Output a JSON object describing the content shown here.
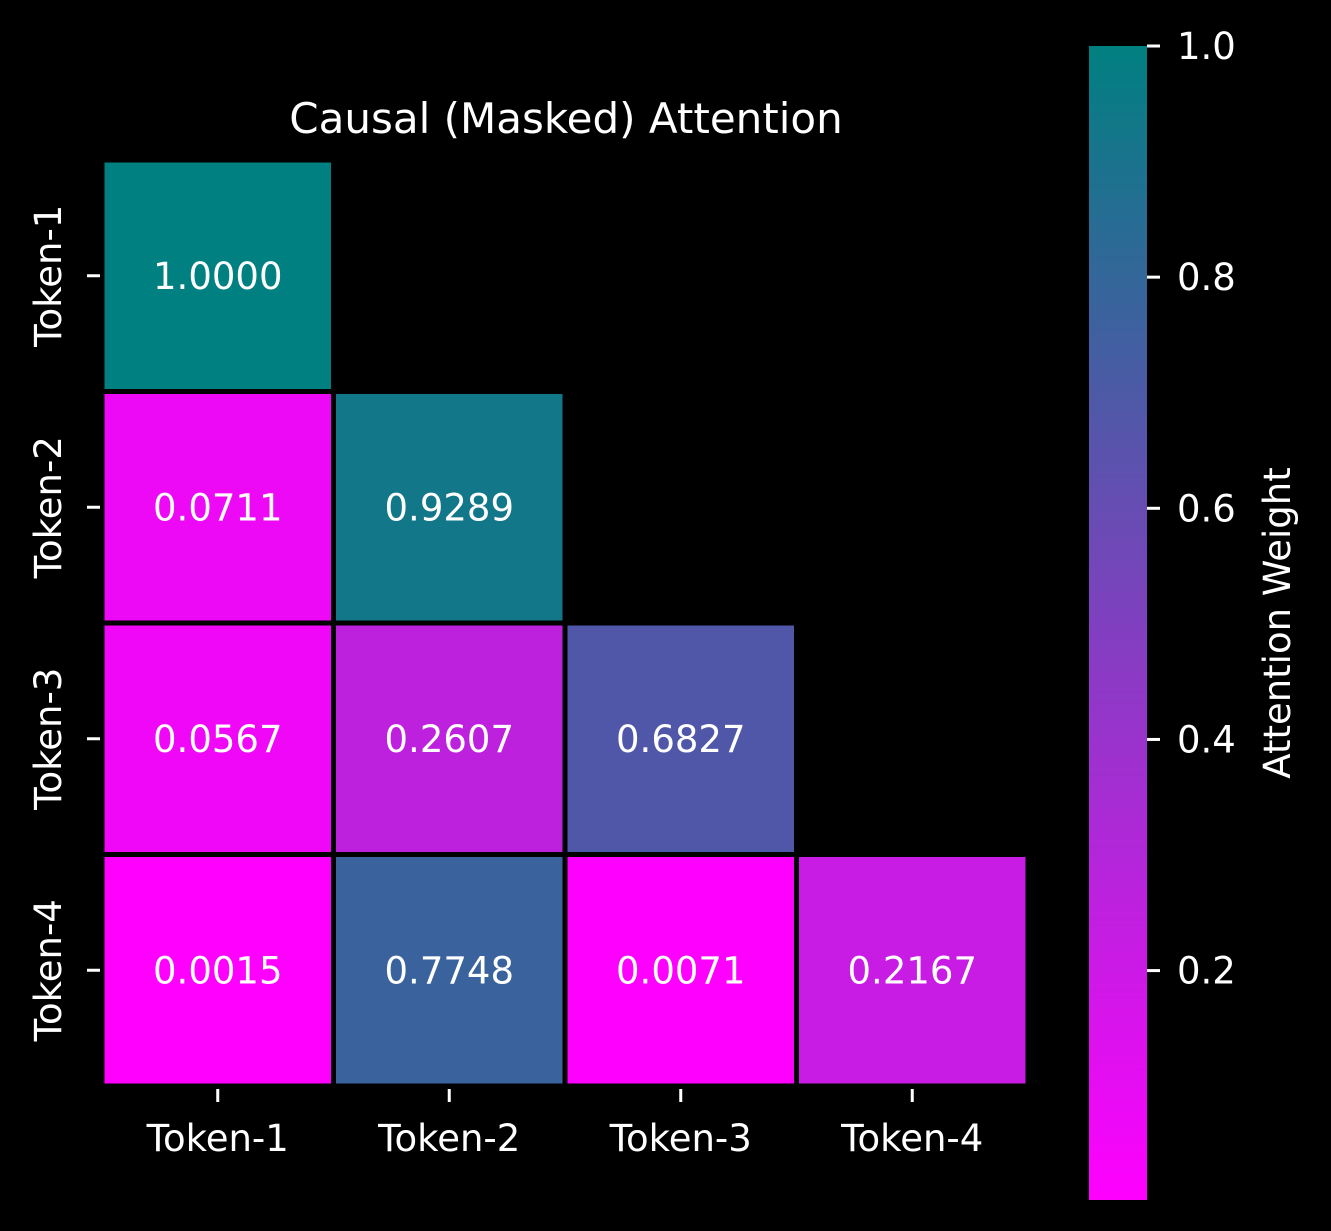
{
  "chart_data": {
    "type": "heatmap",
    "title": "Causal (Masked) Attention",
    "x_labels": [
      "Token-1",
      "Token-2",
      "Token-3",
      "Token-4"
    ],
    "y_labels": [
      "Token-1",
      "Token-2",
      "Token-3",
      "Token-4"
    ],
    "values": [
      [
        1.0,
        null,
        null,
        null
      ],
      [
        0.0711,
        0.9289,
        null,
        null
      ],
      [
        0.0567,
        0.2607,
        0.6827,
        null
      ],
      [
        0.0015,
        0.7748,
        0.0071,
        0.2167
      ]
    ],
    "cell_labels": [
      [
        "1.0000",
        "",
        "",
        ""
      ],
      [
        "0.0711",
        "0.9289",
        "",
        ""
      ],
      [
        "0.0567",
        "0.2607",
        "0.6827",
        ""
      ],
      [
        "0.0015",
        "0.7748",
        "0.0071",
        "0.2167"
      ]
    ],
    "mask": "upper-triangle",
    "colorbar": {
      "label": "Attention Weight",
      "range": [
        0.0015,
        1.0
      ],
      "ticks": [
        0.2,
        0.4,
        0.6,
        0.8,
        1.0
      ],
      "tick_labels": [
        "0.2",
        "0.4",
        "0.6",
        "0.8",
        "1.0"
      ],
      "colors": [
        "#ff00ff",
        "#008080"
      ]
    },
    "background": "#000000",
    "grid": false
  }
}
